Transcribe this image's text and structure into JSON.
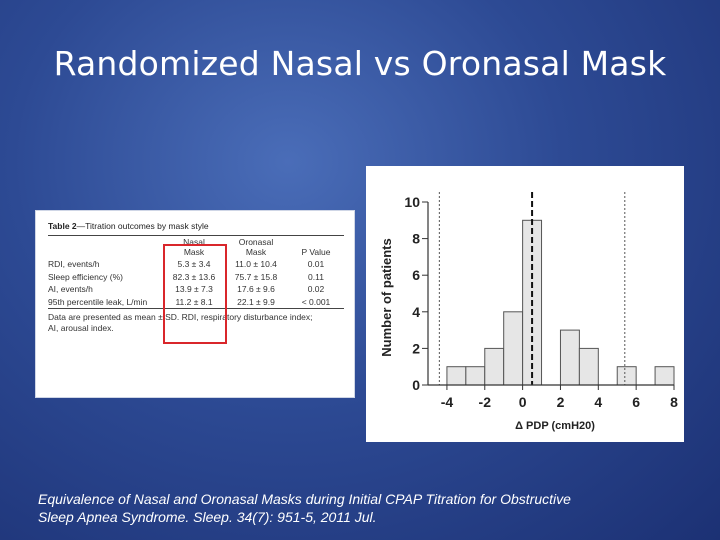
{
  "slide": {
    "title": "Randomized Nasal vs Oronasal Mask",
    "citation_line1": "Equivalence of Nasal and Oronasal Masks during Initial CPAP Titration for Obstructive",
    "citation_line2": "Sleep Apnea Syndrome. Sleep. 34(7): 951-5, 2011 Jul."
  },
  "table": {
    "caption_bold": "Table 2",
    "caption_rest": "—Titration outcomes by mask style",
    "headers": {
      "c1a": "Nasal",
      "c1b": "Mask",
      "c2a": "Oronasal",
      "c2b": "Mask",
      "c3": "P Value"
    },
    "rows": [
      {
        "label": "RDI, events/h",
        "nasal": "5.3 ± 3.4",
        "oronasal": "11.0 ± 10.4",
        "p": "0.01"
      },
      {
        "label": "Sleep efficiency (%)",
        "nasal": "82.3 ± 13.6",
        "oronasal": "75.7 ± 15.8",
        "p": "0.11"
      },
      {
        "label": "AI, events/h",
        "nasal": "13.9 ± 7.3",
        "oronasal": "17.6 ± 9.6",
        "p": "0.02"
      },
      {
        "label": "95th percentile leak, L/min",
        "nasal": "11.2 ± 8.1",
        "oronasal": "22.1 ± 9.9",
        "p": "< 0.001"
      }
    ],
    "footnote_line1": "Data are presented as mean ± SD. RDI, respiratory disturbance index;",
    "footnote_line2": "AI, arousal index.",
    "highlight_color": "#d9262b"
  },
  "chart_data": {
    "type": "bar",
    "xlabel": "Δ PDP (cmH20)",
    "ylabel": "Number of patients",
    "xlim": [
      -5,
      8
    ],
    "ylim": [
      0,
      10
    ],
    "xticks": [
      -4,
      -2,
      0,
      2,
      4,
      6,
      8
    ],
    "yticks": [
      0,
      2,
      4,
      6,
      8,
      10
    ],
    "bin_width": 1,
    "bins": [
      {
        "from": -4,
        "to": -3,
        "count": 1
      },
      {
        "from": -3,
        "to": -2,
        "count": 1
      },
      {
        "from": -2,
        "to": -1,
        "count": 2
      },
      {
        "from": -1,
        "to": 0,
        "count": 4
      },
      {
        "from": 0,
        "to": 1,
        "count": 9
      },
      {
        "from": 2,
        "to": 3,
        "count": 3
      },
      {
        "from": 3,
        "to": 4,
        "count": 2
      },
      {
        "from": 5,
        "to": 6,
        "count": 1
      },
      {
        "from": 7,
        "to": 8,
        "count": 1
      }
    ],
    "reference_lines": [
      {
        "x": -4.4,
        "style": "dotted"
      },
      {
        "x": 0.5,
        "style": "dashed"
      },
      {
        "x": 5.4,
        "style": "dotted"
      }
    ],
    "bar_color": "#e6e6e6",
    "bar_edge": "#555555"
  }
}
